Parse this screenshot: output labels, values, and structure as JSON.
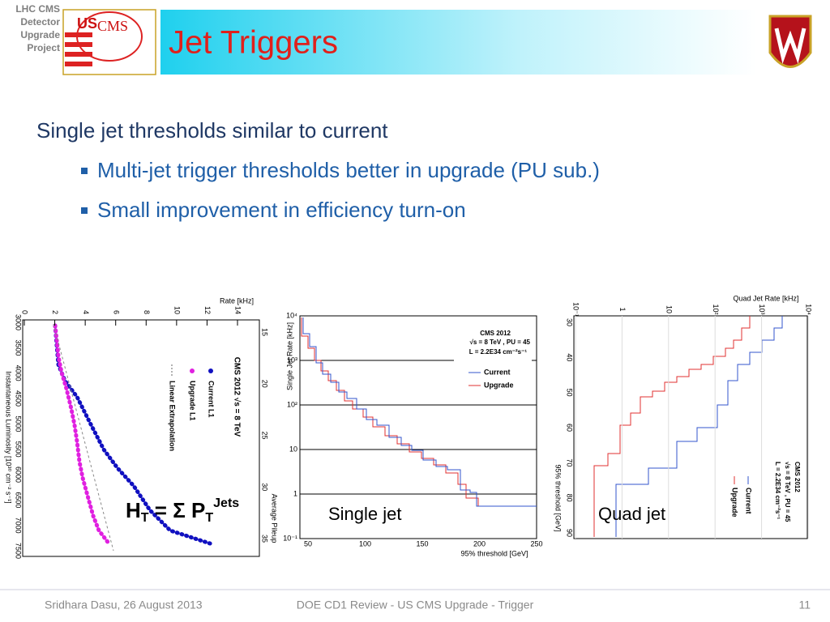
{
  "header": {
    "side_label": [
      "LHC CMS",
      "Detector",
      "Upgrade",
      "Project"
    ],
    "logo_text": [
      "US",
      "CMS"
    ],
    "title": "Jet Triggers"
  },
  "bullets": {
    "main": "Single jet thresholds similar to current",
    "sub": [
      "Multi-jet trigger thresholds better in upgrade (PU sub.)",
      "Small improvement in efficiency turn-on"
    ]
  },
  "figures": [
    {
      "rate_label": "Rate [kHz]",
      "rate_ticks": [
        "0",
        "2",
        "4",
        "6",
        "8",
        "10",
        "12",
        "14"
      ],
      "lumi_label": "Instantaneous Luminosity [10³⁰ cm⁻² s⁻¹]",
      "lumi_ticks": [
        "3000",
        "3500",
        "4000",
        "4500",
        "5000",
        "5500",
        "6000",
        "6500",
        "7000",
        "7500"
      ],
      "pileup_label": "Average Pileup",
      "pileup_ticks": [
        "15",
        "20",
        "25",
        "30",
        "35"
      ],
      "legend_title": "CMS 2012  √s = 8 TeV",
      "legend": [
        "Current L1",
        "Upgrade L1",
        "Linear Extrapolation"
      ]
    },
    {
      "y_label": "Single Jet Rate [kHz]",
      "y_ticks": [
        "10⁴",
        "10³",
        "10²",
        "10",
        "1",
        "10⁻¹"
      ],
      "x_label": "95% threshold [GeV]",
      "x_ticks": [
        "50",
        "100",
        "150",
        "200",
        "250"
      ],
      "legend_lines": [
        "CMS 2012",
        "√s = 8 TeV , PU = 45",
        "L = 2.2E34 cm⁻²s⁻¹"
      ],
      "legend": [
        "Current",
        "Upgrade"
      ],
      "caption": "Single jet"
    },
    {
      "rate_label": "Quad Jet Rate [kHz]",
      "rate_ticks": [
        "10⁻¹",
        "1",
        "10",
        "10²",
        "10³",
        "10⁴"
      ],
      "y_label": "95% threshold [GeV]",
      "y_ticks": [
        "30",
        "40",
        "50",
        "60",
        "70",
        "80",
        "90"
      ],
      "legend_lines": [
        "CMS 2012",
        "√s = 8 TeV , PU = 45",
        "L = 2.2E34 cm⁻²s⁻¹"
      ],
      "legend": [
        "Current",
        "Upgrade"
      ],
      "caption": "Quad jet"
    }
  ],
  "formula": {
    "h": "H",
    "t1": "T",
    "eq": " = Σ P",
    "t2": "T",
    "jets": "Jets"
  },
  "footer": {
    "left": "Sridhara Dasu, 26 August 2013",
    "center": "DOE CD1 Review - US CMS Upgrade - Trigger",
    "page": "11"
  }
}
